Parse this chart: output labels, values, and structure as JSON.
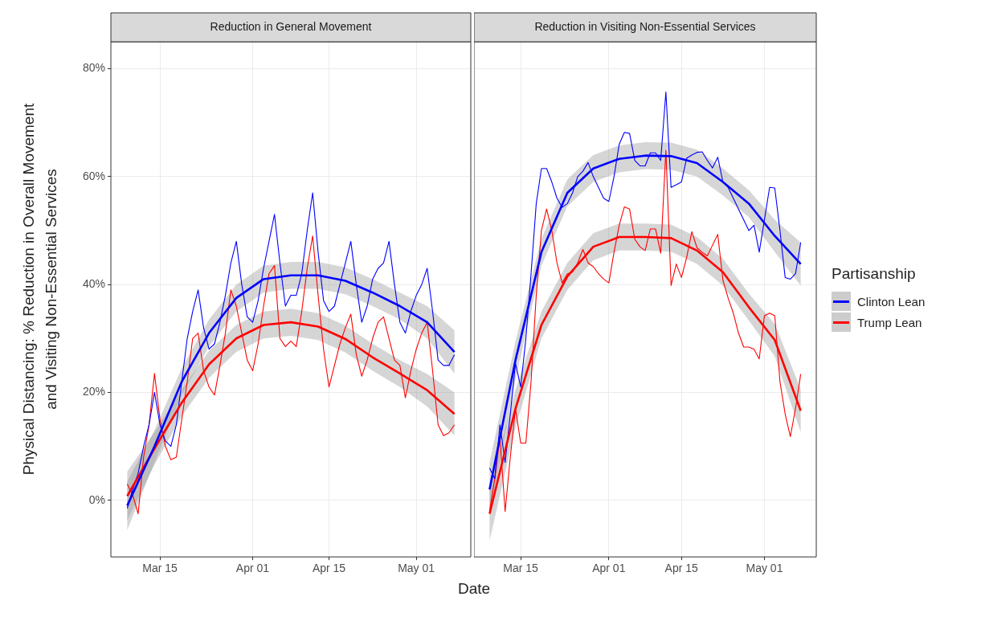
{
  "chart_data": [
    {
      "type": "line",
      "title": "Reduction in General Movement",
      "xlabel": "Date",
      "ylabel": "Physical Distancing: % Reduction in Overall Movement\nand Visiting Non-Essential Services",
      "grid": true,
      "x": [
        "--03-09",
        "--03-10",
        "--03-11",
        "--03-12",
        "--03-13",
        "--03-14",
        "--03-15",
        "--03-16",
        "--03-17",
        "--03-18",
        "--03-19",
        "--03-20",
        "--03-21",
        "--03-22",
        "--03-23",
        "--03-24",
        "--03-25",
        "--03-26",
        "--03-27",
        "--03-28",
        "--03-29",
        "--03-30",
        "--03-31",
        "--04-01",
        "--04-02",
        "--04-03",
        "--04-04",
        "--04-05",
        "--04-06",
        "--04-07",
        "--04-08",
        "--04-09",
        "--04-10",
        "--04-11",
        "--04-12",
        "--04-13",
        "--04-14",
        "--04-15",
        "--04-16",
        "--04-17",
        "--04-18",
        "--04-19",
        "--04-20",
        "--04-21",
        "--04-22",
        "--04-23",
        "--04-24",
        "--04-25",
        "--04-26",
        "--04-27",
        "--04-28",
        "--04-29",
        "--04-30",
        "--05-01",
        "--05-02",
        "--05-03",
        "--05-04",
        "--05-05",
        "--05-06",
        "--05-07",
        "--05-08"
      ],
      "xlim": [
        "--03-06",
        "--05-11"
      ],
      "xticks": [
        {
          "value": "--03-15",
          "label": "Mar 15"
        },
        {
          "value": "--04-01",
          "label": "Apr 01"
        },
        {
          "value": "--04-15",
          "label": "Apr 15"
        },
        {
          "value": "--05-01",
          "label": "May 01"
        }
      ],
      "ylim": [
        -10.5,
        85
      ],
      "yticks": [
        {
          "value": 0,
          "label": "0%"
        },
        {
          "value": 20,
          "label": "20%"
        },
        {
          "value": 40,
          "label": "40%"
        },
        {
          "value": 60,
          "label": "60%"
        },
        {
          "value": 80,
          "label": "80%"
        }
      ],
      "series": [
        {
          "color": "#0000ff",
          "values": [
            -1.5,
            2,
            5,
            10,
            14,
            20,
            14,
            11,
            10,
            14,
            22,
            30,
            35,
            39,
            32,
            28,
            29,
            33,
            38,
            44,
            48,
            40,
            34,
            33,
            37,
            43,
            48,
            53,
            44,
            36,
            38,
            38,
            42,
            50,
            57,
            46,
            37,
            35,
            36,
            40,
            44,
            48,
            40,
            33,
            36,
            41,
            43,
            44,
            48,
            40,
            33,
            31,
            35,
            38,
            40,
            43,
            35,
            26,
            25,
            25,
            27
          ]
        },
        {
          "color": "#ff0000",
          "values": [
            3,
            1,
            -2.5,
            8,
            14,
            23.5,
            15,
            10,
            7.5,
            8,
            15,
            22,
            30,
            31,
            24,
            21,
            19.5,
            25,
            31,
            39,
            36,
            31,
            26,
            24,
            29,
            36,
            42,
            43.5,
            30,
            28.5,
            29.5,
            28.5,
            35,
            43,
            49,
            38,
            28,
            21,
            25,
            29,
            32,
            34.5,
            27,
            23,
            26,
            30,
            33,
            34,
            30,
            26,
            25,
            19,
            24,
            28,
            31,
            33,
            24,
            14,
            12,
            12.5,
            14
          ]
        },
        {
          "color": "#0000ff",
          "x": [
            "--03-09",
            "--03-14",
            "--03-19",
            "--03-24",
            "--03-29",
            "--04-03",
            "--04-08",
            "--04-13",
            "--04-18",
            "--04-23",
            "--04-28",
            "--05-03",
            "--05-08"
          ],
          "values": [
            -1,
            10,
            22,
            31,
            37.5,
            41,
            41.7,
            41.7,
            40.7,
            38.5,
            36,
            33,
            27.5
          ],
          "lower": [
            -5.5,
            7,
            19.5,
            28.5,
            35,
            38.5,
            39.2,
            39.2,
            38.2,
            36,
            33.5,
            30,
            23.5
          ],
          "upper": [
            3.5,
            13,
            24.5,
            33.5,
            40,
            43.5,
            44.2,
            44.2,
            43.2,
            41,
            38.5,
            36,
            31.5
          ]
        },
        {
          "color": "#ff0000",
          "x": [
            "--03-09",
            "--03-14",
            "--03-19",
            "--03-24",
            "--03-29",
            "--04-03",
            "--04-08",
            "--04-13",
            "--04-18",
            "--04-23",
            "--04-28",
            "--05-03",
            "--05-08"
          ],
          "values": [
            0.8,
            9.6,
            18.1,
            25.2,
            30,
            32.5,
            33,
            32.2,
            29.9,
            26.5,
            23.5,
            20.4,
            16
          ],
          "lower": [
            -3.7,
            6.6,
            15.6,
            22.7,
            27.5,
            30,
            30.5,
            29.7,
            27.4,
            24,
            21,
            17.4,
            12
          ],
          "upper": [
            5.3,
            12.6,
            20.6,
            27.7,
            32.5,
            35,
            35.5,
            34.7,
            32.4,
            29,
            26,
            23.4,
            20
          ]
        }
      ]
    },
    {
      "type": "line",
      "title": "Reduction in Visiting Non-Essential Services",
      "grid": true,
      "tick_labels": "x",
      "legend": "right",
      "legend_title": "Partisanship",
      "x": [
        "--03-09",
        "--03-10",
        "--03-11",
        "--03-12",
        "--03-13",
        "--03-14",
        "--03-15",
        "--03-16",
        "--03-17",
        "--03-18",
        "--03-19",
        "--03-20",
        "--03-21",
        "--03-22",
        "--03-23",
        "--03-24",
        "--03-25",
        "--03-26",
        "--03-27",
        "--03-28",
        "--03-29",
        "--03-30",
        "--03-31",
        "--04-01",
        "--04-02",
        "--04-03",
        "--04-04",
        "--04-05",
        "--04-06",
        "--04-07",
        "--04-08",
        "--04-09",
        "--04-10",
        "--04-11",
        "--04-12",
        "--04-13",
        "--04-14",
        "--04-15",
        "--04-16",
        "--04-17",
        "--04-18",
        "--04-19",
        "--04-20",
        "--04-21",
        "--04-22",
        "--04-23",
        "--04-24",
        "--04-25",
        "--04-26",
        "--04-27",
        "--04-28",
        "--04-29",
        "--04-30",
        "--05-01",
        "--05-02",
        "--05-03",
        "--05-04",
        "--05-05",
        "--05-06",
        "--05-07",
        "--05-08"
      ],
      "xlim": [
        "--03-06",
        "--05-11"
      ],
      "xticks": [
        {
          "value": "--03-15",
          "label": "Mar 15"
        },
        {
          "value": "--04-01",
          "label": "Apr 01"
        },
        {
          "value": "--04-15",
          "label": "Apr 15"
        },
        {
          "value": "--05-01",
          "label": "May 01"
        }
      ],
      "ylim": [
        -10.5,
        85
      ],
      "yticks": [
        0,
        20,
        40,
        60,
        80
      ],
      "series": [
        {
          "color": "#0000ff",
          "values": [
            6,
            4,
            14,
            7,
            16,
            25.4,
            21,
            30,
            42,
            55,
            61.5,
            61.5,
            59,
            56,
            54.3,
            55,
            57,
            60,
            61,
            62.6,
            60,
            58,
            56,
            55.4,
            60,
            66,
            68.2,
            68,
            63,
            62,
            62,
            64.4,
            64.4,
            63,
            75.7,
            58,
            58.5,
            59,
            63.4,
            64,
            64.5,
            64.6,
            63,
            61.6,
            63.6,
            59,
            58,
            56,
            54,
            52,
            50,
            51,
            46,
            52,
            58,
            57.9,
            50,
            41.3,
            41,
            42,
            47.8
          ]
        },
        {
          "color": "#ff0000",
          "values": [
            -2,
            4,
            11.6,
            -2.1,
            8,
            17,
            10.6,
            10.6,
            22,
            38,
            50,
            54,
            50,
            44,
            40.3,
            42,
            42.3,
            44,
            46.5,
            44,
            43.3,
            42,
            41,
            40.3,
            46,
            51,
            54.4,
            54,
            48.4,
            47,
            46.3,
            50.3,
            50.3,
            45.8,
            64.9,
            39.8,
            43.8,
            41.3,
            45,
            49.8,
            46.8,
            46,
            45.3,
            47.3,
            49.3,
            40.8,
            37.5,
            34.7,
            31,
            28.4,
            28.4,
            28,
            26.2,
            34.2,
            34.7,
            34.2,
            22,
            16,
            11.8,
            17,
            23.4
          ]
        },
        {
          "name": "Clinton Lean",
          "color": "#0000ff",
          "x": [
            "--03-09",
            "--03-14",
            "--03-19",
            "--03-24",
            "--03-29",
            "--04-03",
            "--04-08",
            "--04-13",
            "--04-18",
            "--04-23",
            "--04-28",
            "--05-03",
            "--05-08"
          ],
          "values": [
            2,
            26,
            46,
            57,
            61.5,
            63.3,
            63.9,
            63.8,
            62.5,
            59,
            55,
            49,
            43.8
          ],
          "lower": [
            -3,
            22.5,
            43.5,
            54.5,
            59,
            60.8,
            61.4,
            61.3,
            60,
            56.5,
            52.5,
            46,
            39.8
          ],
          "upper": [
            7,
            29.5,
            48.5,
            59.5,
            64,
            65.8,
            66.4,
            66.3,
            65,
            61.5,
            57.5,
            52,
            47.8
          ]
        },
        {
          "name": "Trump Lean",
          "color": "#ff0000",
          "x": [
            "--03-09",
            "--03-14",
            "--03-19",
            "--03-24",
            "--03-29",
            "--04-03",
            "--04-08",
            "--04-13",
            "--04-18",
            "--04-23",
            "--04-28",
            "--05-03",
            "--05-08"
          ],
          "values": [
            -2.5,
            17,
            32.5,
            41.5,
            47,
            48.8,
            48.8,
            48.6,
            46.3,
            42.3,
            35.8,
            29.7,
            16.6
          ],
          "lower": [
            -7.5,
            13.5,
            30,
            39,
            44.5,
            46.3,
            46.3,
            46.1,
            43.8,
            39.8,
            33.3,
            26.7,
            12.6
          ],
          "upper": [
            2.5,
            20.5,
            35,
            44,
            49.5,
            51.3,
            51.3,
            51.1,
            48.8,
            44.8,
            38.3,
            32.7,
            20.6
          ]
        }
      ]
    }
  ]
}
